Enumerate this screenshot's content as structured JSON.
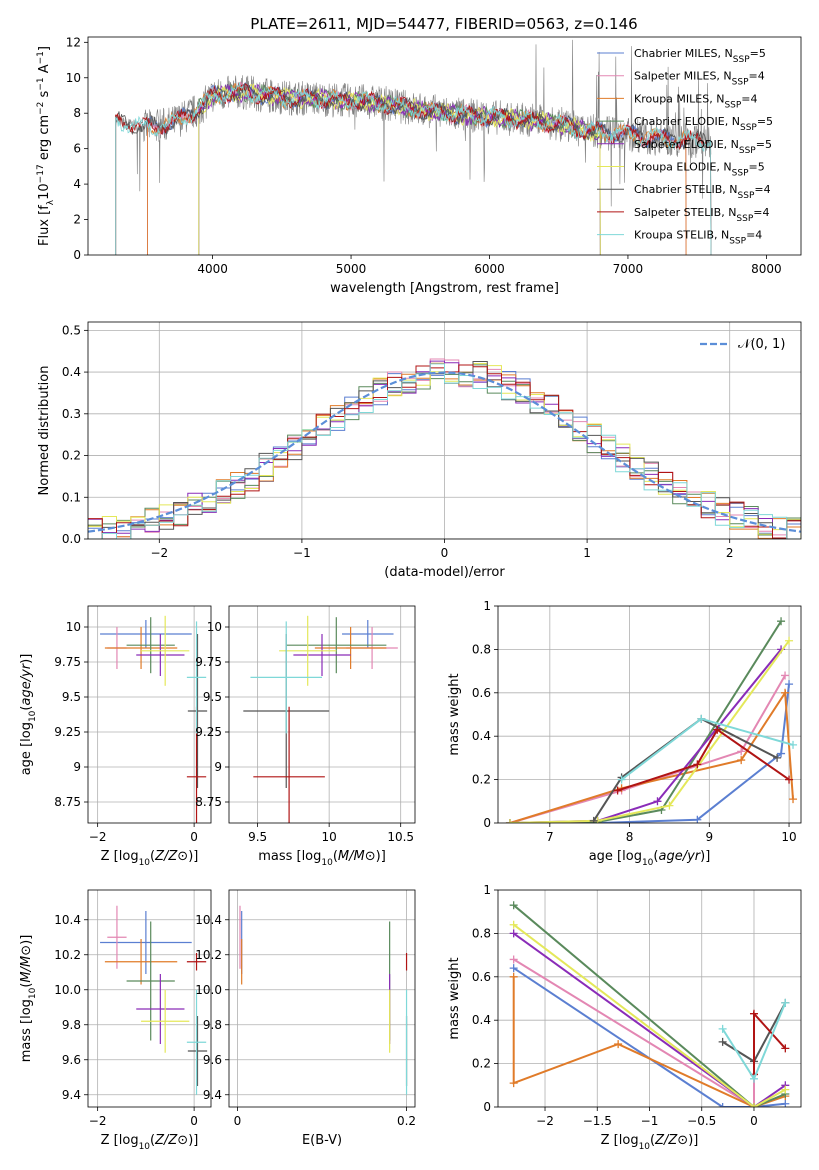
{
  "figure_title": "PLATE=2611, MJD=54477, FIBERID=0563, z=0.146",
  "colors": {
    "Chabrier MILES": "#5b7fd1",
    "Salpeter MILES": "#e387b3",
    "Kroupa MILES": "#e07b29",
    "Chabrier ELODIE": "#5a8a5c",
    "Salpeter ELODIE": "#8a2cb8",
    "Kroupa ELODIE": "#e4e85a",
    "Chabrier STELIB": "#555555",
    "Salpeter STELIB": "#b01414",
    "Kroupa STELIB": "#7fd8d8",
    "spectrum": "#7f7f7f",
    "gaussian": "#5b8ed8"
  },
  "chart_data": [
    {
      "id": "spectrum",
      "type": "line",
      "xlabel": "wavelength [Angstrom, rest frame]",
      "ylabel": "Flux [f$_\\lambda$10$^{-17}$ erg cm$^{-2}$ s$^{-1}$ A$^{-1}$]",
      "xlim": [
        3100,
        8250
      ],
      "ylim": [
        0,
        12.3
      ],
      "xticks": [
        4000,
        5000,
        6000,
        7000,
        8000
      ],
      "yticks": [
        0,
        2,
        4,
        6,
        8,
        10,
        12
      ],
      "legend": "top-right",
      "legend_entries": [
        {
          "label": "Chabrier MILES, N",
          "sub": "SSP",
          "val": "=5"
        },
        {
          "label": "Salpeter MILES, N",
          "sub": "SSP",
          "val": "=4"
        },
        {
          "label": "Kroupa MILES, N",
          "sub": "SSP",
          "val": "=4"
        },
        {
          "label": "Chabrier ELODIE, N",
          "sub": "SSP",
          "val": "=5"
        },
        {
          "label": "Salpeter ELODIE, N",
          "sub": "SSP",
          "val": "=5"
        },
        {
          "label": "Kroupa ELODIE, N",
          "sub": "SSP",
          "val": "=5"
        },
        {
          "label": "Chabrier STELIB, N",
          "sub": "SSP",
          "val": "=4"
        },
        {
          "label": "Salpeter STELIB, N",
          "sub": "SSP",
          "val": "=4"
        },
        {
          "label": "Kroupa STELIB, N",
          "sub": "SSP",
          "val": "=4"
        }
      ],
      "continuum": {
        "x": [
          3300,
          3500,
          3700,
          3900,
          4000,
          4200,
          4500,
          4800,
          5000,
          5200,
          5500,
          5800,
          6000,
          6300,
          6500,
          6700,
          7000,
          7200,
          7400,
          7600
        ],
        "y": [
          7.6,
          7.2,
          7.4,
          8.2,
          9.0,
          9.2,
          8.9,
          8.8,
          8.7,
          8.6,
          8.2,
          7.9,
          7.8,
          7.6,
          7.4,
          7.0,
          6.8,
          6.6,
          6.5,
          6.4
        ]
      }
    },
    {
      "id": "residuals",
      "type": "line",
      "xlabel": "(data-model)/error",
      "ylabel": "Normed distribution",
      "xlim": [
        -2.5,
        2.5
      ],
      "ylim": [
        0,
        0.52
      ],
      "xticks": [
        -2,
        -1,
        0,
        1,
        2
      ],
      "yticks": [
        0.0,
        0.1,
        0.2,
        0.3,
        0.4,
        0.5
      ],
      "legend": "top-right",
      "legend_label": "𝒩(0, 1)",
      "gaussian": {
        "mu": 0,
        "sigma": 1
      }
    },
    {
      "id": "age_vs_Z",
      "type": "scatter",
      "xlabel": "Z [log10(Z/Z⊙)]",
      "ylabel": "age  [log10(age/yr)]",
      "xlim": [
        -2.2,
        0.35
      ],
      "ylim": [
        8.6,
        10.15
      ],
      "xticks": [
        -2,
        0
      ],
      "yticks": [
        8.75,
        9.0,
        9.25,
        9.5,
        9.75,
        10.0
      ],
      "points": [
        {
          "model": "Chabrier MILES",
          "x": -1.0,
          "xerr": 0.95,
          "y": 9.95,
          "yerr": 0.1
        },
        {
          "model": "Salpeter MILES",
          "x": -1.6,
          "xerr": 0.2,
          "y": 9.85,
          "yerr": 0.15
        },
        {
          "model": "Kroupa MILES",
          "x": -1.1,
          "xerr": 0.75,
          "y": 9.85,
          "yerr": 0.15
        },
        {
          "model": "Chabrier ELODIE",
          "x": -0.9,
          "xerr": 0.5,
          "y": 9.87,
          "yerr": 0.2
        },
        {
          "model": "Salpeter ELODIE",
          "x": -0.7,
          "xerr": 0.5,
          "y": 9.8,
          "yerr": 0.15
        },
        {
          "model": "Kroupa ELODIE",
          "x": -0.6,
          "xerr": 0.5,
          "y": 9.83,
          "yerr": 0.25
        },
        {
          "model": "Chabrier STELIB",
          "x": 0.07,
          "xerr": 0.2,
          "y": 9.4,
          "yerr": 0.55
        },
        {
          "model": "Salpeter STELIB",
          "x": 0.05,
          "xerr": 0.2,
          "y": 8.93,
          "yerr": 0.5
        },
        {
          "model": "Kroupa STELIB",
          "x": 0.05,
          "xerr": 0.2,
          "y": 9.64,
          "yerr": 0.4
        }
      ]
    },
    {
      "id": "age_vs_mass",
      "type": "scatter",
      "xlabel": "mass [log10(M/M⊙)]",
      "ylabel": "",
      "xlim": [
        9.3,
        10.6
      ],
      "ylim": [
        8.6,
        10.15
      ],
      "xticks": [
        9.5,
        10.0,
        10.5
      ],
      "yticks": [
        8.75,
        9.0,
        9.25,
        9.5,
        9.75,
        10.0
      ],
      "points": [
        {
          "model": "Chabrier MILES",
          "x": 10.27,
          "xerr": 0.18,
          "y": 9.95,
          "yerr": 0.1
        },
        {
          "model": "Salpeter MILES",
          "x": 10.3,
          "xerr": 0.18,
          "y": 9.85,
          "yerr": 0.15
        },
        {
          "model": "Kroupa MILES",
          "x": 10.15,
          "xerr": 0.25,
          "y": 9.85,
          "yerr": 0.15
        },
        {
          "model": "Chabrier ELODIE",
          "x": 10.05,
          "xerr": 0.35,
          "y": 9.87,
          "yerr": 0.2
        },
        {
          "model": "Salpeter ELODIE",
          "x": 9.95,
          "xerr": 0.2,
          "y": 9.8,
          "yerr": 0.15
        },
        {
          "model": "Kroupa ELODIE",
          "x": 9.85,
          "xerr": 0.2,
          "y": 9.83,
          "yerr": 0.25
        },
        {
          "model": "Chabrier STELIB",
          "x": 9.7,
          "xerr": 0.3,
          "y": 9.4,
          "yerr": 0.55
        },
        {
          "model": "Salpeter STELIB",
          "x": 9.72,
          "xerr": 0.25,
          "y": 8.93,
          "yerr": 0.5
        },
        {
          "model": "Kroupa STELIB",
          "x": 9.7,
          "xerr": 0.25,
          "y": 9.64,
          "yerr": 0.4
        }
      ]
    },
    {
      "id": "weight_vs_age",
      "type": "line",
      "xlabel": "age  [log10(age/yr)]",
      "ylabel": "mass weight",
      "xlim": [
        6.35,
        10.15
      ],
      "ylim": [
        0,
        1.0
      ],
      "xticks": [
        7,
        8,
        9,
        10
      ],
      "yticks": [
        0.0,
        0.2,
        0.4,
        0.6,
        0.8,
        1.0
      ],
      "series": [
        {
          "model": "Chabrier MILES",
          "x": [
            6.5,
            7.6,
            8.85,
            9.9,
            10.0
          ],
          "y": [
            0.0,
            0.0,
            0.015,
            0.32,
            0.64
          ]
        },
        {
          "model": "Salpeter MILES",
          "x": [
            6.5,
            7.9,
            9.4,
            9.95
          ],
          "y": [
            0.0,
            0.15,
            0.33,
            0.68
          ]
        },
        {
          "model": "Kroupa MILES",
          "x": [
            6.5,
            7.9,
            9.4,
            9.95,
            10.05
          ],
          "y": [
            0.0,
            0.16,
            0.29,
            0.6,
            0.11
          ]
        },
        {
          "model": "Chabrier ELODIE",
          "x": [
            6.5,
            7.6,
            8.4,
            9.9
          ],
          "y": [
            0.0,
            0.005,
            0.06,
            0.93
          ]
        },
        {
          "model": "Salpeter ELODIE",
          "x": [
            6.5,
            7.6,
            8.35,
            9.9
          ],
          "y": [
            0.0,
            0.01,
            0.1,
            0.8
          ]
        },
        {
          "model": "Kroupa ELODIE",
          "x": [
            6.5,
            7.6,
            8.5,
            10.0
          ],
          "y": [
            0.0,
            0.01,
            0.08,
            0.84
          ]
        },
        {
          "model": "Chabrier STELIB",
          "x": [
            7.55,
            7.9,
            8.9,
            9.85
          ],
          "y": [
            0.01,
            0.21,
            0.48,
            0.3
          ]
        },
        {
          "model": "Salpeter STELIB",
          "x": [
            7.85,
            8.85,
            9.1,
            10.0
          ],
          "y": [
            0.15,
            0.27,
            0.43,
            0.2
          ]
        },
        {
          "model": "Kroupa STELIB",
          "x": [
            7.9,
            8.9,
            10.05
          ],
          "y": [
            0.2,
            0.48,
            0.36
          ]
        }
      ]
    },
    {
      "id": "mass_vs_Z",
      "type": "scatter",
      "xlabel": "Z [log10(Z/Z⊙)]",
      "ylabel": "mass [log10(M/M⊙)]",
      "xlim": [
        -2.2,
        0.35
      ],
      "ylim": [
        9.33,
        10.57
      ],
      "xticks": [
        -2,
        0
      ],
      "yticks": [
        9.4,
        9.6,
        9.8,
        10.0,
        10.2,
        10.4
      ],
      "points": [
        {
          "model": "Chabrier MILES",
          "x": -1.0,
          "xerr": 0.95,
          "y": 10.27,
          "yerr": 0.18
        },
        {
          "model": "Salpeter MILES",
          "x": -1.6,
          "xerr": 0.2,
          "y": 10.3,
          "yerr": 0.18
        },
        {
          "model": "Kroupa MILES",
          "x": -1.1,
          "xerr": 0.75,
          "y": 10.16,
          "yerr": 0.13
        },
        {
          "model": "Chabrier ELODIE",
          "x": -0.9,
          "xerr": 0.5,
          "y": 10.05,
          "yerr": 0.34
        },
        {
          "model": "Salpeter ELODIE",
          "x": -0.7,
          "xerr": 0.5,
          "y": 9.89,
          "yerr": 0.2
        },
        {
          "model": "Kroupa ELODIE",
          "x": -0.6,
          "xerr": 0.5,
          "y": 9.82,
          "yerr": 0.18
        },
        {
          "model": "Chabrier STELIB",
          "x": 0.07,
          "xerr": 0.2,
          "y": 9.65,
          "yerr": 0.2
        },
        {
          "model": "Salpeter STELIB",
          "x": 0.05,
          "xerr": 0.2,
          "y": 10.16,
          "yerr": 0.05
        },
        {
          "model": "Kroupa STELIB",
          "x": 0.05,
          "xerr": 0.2,
          "y": 9.7,
          "yerr": 0.3
        }
      ]
    },
    {
      "id": "mass_vs_ebv",
      "type": "scatter",
      "xlabel": "E(B-V)",
      "ylabel": "",
      "xlim": [
        -0.01,
        0.21
      ],
      "ylim": [
        9.33,
        10.57
      ],
      "xticks": [
        0.0,
        0.2
      ],
      "yticks": [
        9.4,
        9.6,
        9.8,
        10.0,
        10.2,
        10.4
      ],
      "points": [
        {
          "model": "Chabrier MILES",
          "x": 0.005,
          "y": 10.27,
          "yerr": 0.18
        },
        {
          "model": "Salpeter MILES",
          "x": 0.003,
          "y": 10.3,
          "yerr": 0.18
        },
        {
          "model": "Kroupa MILES",
          "x": 0.005,
          "y": 10.16,
          "yerr": 0.13
        },
        {
          "model": "Chabrier ELODIE",
          "x": 0.18,
          "y": 10.05,
          "yerr": 0.34
        },
        {
          "model": "Salpeter ELODIE",
          "x": 0.18,
          "y": 9.89,
          "yerr": 0.2
        },
        {
          "model": "Kroupa ELODIE",
          "x": 0.18,
          "y": 9.82,
          "yerr": 0.18
        },
        {
          "model": "Chabrier STELIB",
          "x": 0.2,
          "y": 9.65,
          "yerr": 0.2
        },
        {
          "model": "Salpeter STELIB",
          "x": 0.2,
          "y": 10.16,
          "yerr": 0.05
        },
        {
          "model": "Kroupa STELIB",
          "x": 0.2,
          "y": 9.7,
          "yerr": 0.3
        }
      ]
    },
    {
      "id": "weight_vs_Z",
      "type": "line",
      "xlabel": "Z [log10(Z/Z⊙)]",
      "ylabel": "mass weight",
      "xlim": [
        -2.45,
        0.45
      ],
      "ylim": [
        0,
        1.0
      ],
      "xticks": [
        -2.0,
        -1.5,
        -1.0,
        -0.5,
        0.0
      ],
      "yticks": [
        0.0,
        0.2,
        0.4,
        0.6,
        0.8,
        1.0
      ],
      "series": [
        {
          "model": "Chabrier MILES",
          "x": [
            -2.3,
            -0.3,
            0.0,
            0.3
          ],
          "y": [
            0.64,
            0.0,
            0.0,
            0.015
          ]
        },
        {
          "model": "Salpeter MILES",
          "x": [
            -2.3,
            0.0,
            0.0
          ],
          "y": [
            0.68,
            0.0,
            0.15
          ]
        },
        {
          "model": "Kroupa MILES",
          "x": [
            -2.3,
            -2.3,
            -1.3,
            0.0,
            0.3
          ],
          "y": [
            0.6,
            0.11,
            0.29,
            0.0,
            0.05
          ]
        },
        {
          "model": "Chabrier ELODIE",
          "x": [
            -2.3,
            0.0,
            0.3
          ],
          "y": [
            0.93,
            0.0,
            0.06
          ]
        },
        {
          "model": "Salpeter ELODIE",
          "x": [
            -2.3,
            0.0,
            0.3
          ],
          "y": [
            0.8,
            0.0,
            0.1
          ]
        },
        {
          "model": "Kroupa ELODIE",
          "x": [
            -2.3,
            0.0,
            0.3
          ],
          "y": [
            0.84,
            0.0,
            0.08
          ]
        },
        {
          "model": "Chabrier STELIB",
          "x": [
            -0.3,
            0.0,
            0.3
          ],
          "y": [
            0.3,
            0.21,
            0.48
          ]
        },
        {
          "model": "Salpeter STELIB",
          "x": [
            0.0,
            0.0,
            0.3
          ],
          "y": [
            0.15,
            0.43,
            0.27
          ]
        },
        {
          "model": "Kroupa STELIB",
          "x": [
            -0.3,
            0.0,
            0.3
          ],
          "y": [
            0.36,
            0.13,
            0.48
          ]
        }
      ]
    }
  ]
}
